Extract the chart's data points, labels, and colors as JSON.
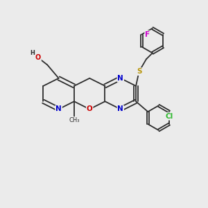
{
  "bg_color": "#ebebeb",
  "atom_colors": {
    "C": "#2d2d2d",
    "N": "#0000cc",
    "O": "#cc0000",
    "S": "#b8960c",
    "F": "#cc00cc",
    "Cl": "#2db82d",
    "H": "#2d2d2d"
  },
  "bond_color": "#2d2d2d",
  "bond_lw": 1.3,
  "figsize": [
    3.0,
    3.0
  ],
  "dpi": 100
}
